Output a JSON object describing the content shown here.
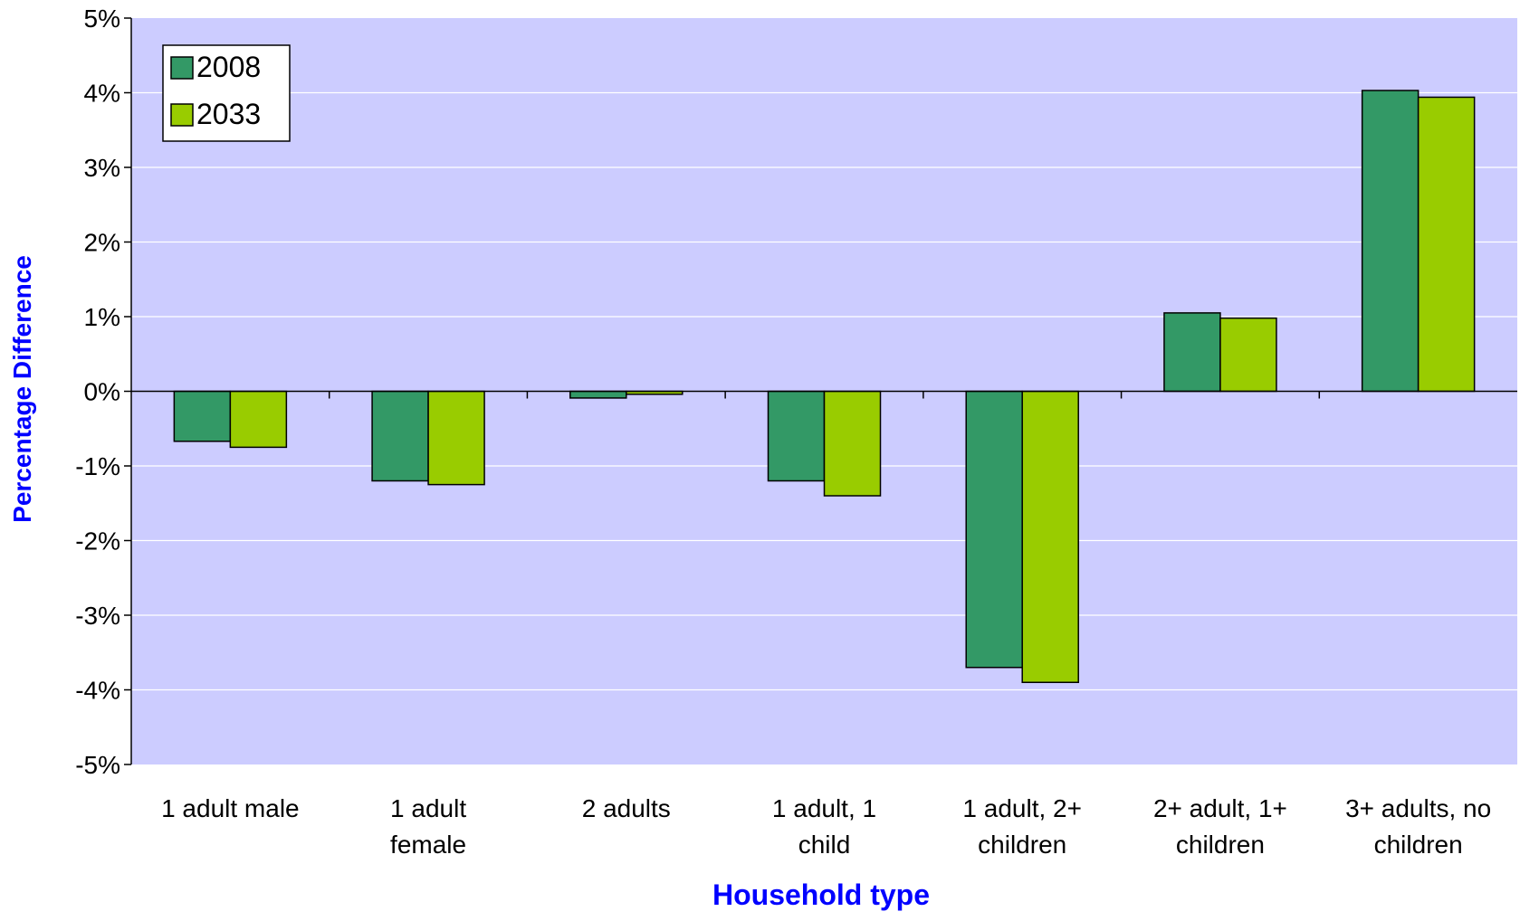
{
  "chart_data": {
    "type": "bar",
    "title": "",
    "xlabel": "Household type",
    "ylabel": "Percentage Difference",
    "ylim": [
      -5,
      5
    ],
    "y_ticks": [
      5,
      4,
      3,
      2,
      1,
      0,
      -1,
      -2,
      -3,
      -4,
      -5
    ],
    "y_tick_labels": [
      "5%",
      "4%",
      "3%",
      "2%",
      "1%",
      "0%",
      "-1%",
      "-2%",
      "-3%",
      "-4%",
      "-5%"
    ],
    "categories": [
      "1 adult male",
      "1 adult female",
      "2 adults",
      "1 adult, 1 child",
      "1 adult, 2+ children",
      "2+ adult, 1+ children",
      "3+ adults, no children"
    ],
    "category_label_lines": [
      [
        "1 adult male"
      ],
      [
        "1 adult",
        "female"
      ],
      [
        "2 adults"
      ],
      [
        "1 adult, 1",
        "child"
      ],
      [
        "1 adult, 2+",
        "children"
      ],
      [
        "2+ adult, 1+",
        "children"
      ],
      [
        "3+ adults, no",
        "children"
      ]
    ],
    "series": [
      {
        "name": "2008",
        "color": "#339966",
        "values": [
          -0.67,
          -1.2,
          -0.09,
          -1.2,
          -3.7,
          1.05,
          4.03
        ]
      },
      {
        "name": "2033",
        "color": "#99CC00",
        "values": [
          -0.75,
          -1.25,
          -0.04,
          -1.4,
          -3.9,
          0.98,
          3.94
        ]
      }
    ],
    "grid": true,
    "legend": "top-left",
    "colors": {
      "plot_background": "#CCCCFF",
      "axis_title": "#0000FF",
      "gridline": "#FFFFFF",
      "axis": "#000000"
    }
  }
}
